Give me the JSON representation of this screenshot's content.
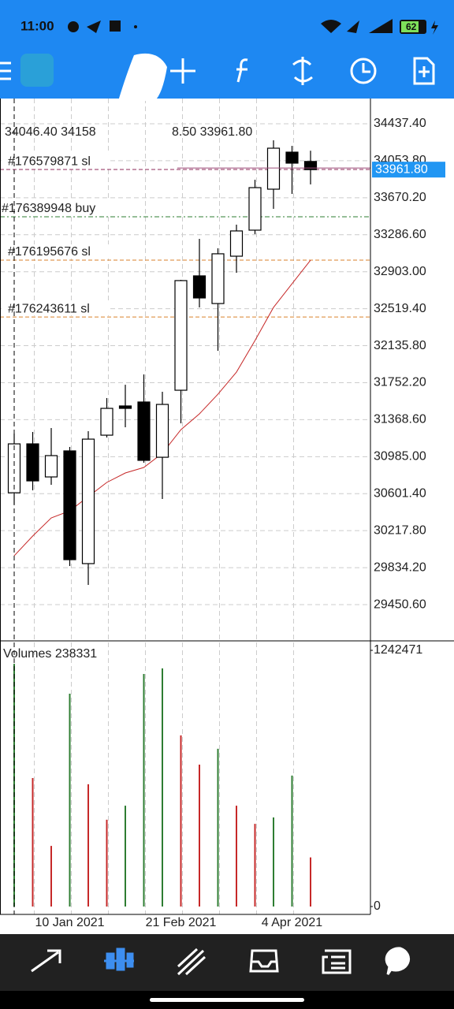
{
  "status_bar": {
    "time": "11:00",
    "battery": "62"
  },
  "chart_data": [
    {
      "type": "candlestick",
      "header": [
        "34046.40 34158",
        "8.50 33961.80"
      ],
      "categories": [
        null,
        null,
        null,
        "10 Jan 2021",
        null,
        null,
        null,
        null,
        null,
        "21 Feb 2021",
        null,
        null,
        null,
        null,
        null,
        "4 Apr 2021",
        null
      ],
      "open": [
        30611,
        31118,
        30775,
        31045,
        29876,
        31208,
        31511,
        31552,
        30979,
        31674,
        32860,
        32573,
        33064,
        33334,
        33759,
        34143,
        34046.4
      ],
      "high": [
        31225,
        31241,
        31282,
        31086,
        31249,
        31593,
        31731,
        31838,
        31658,
        32819,
        33244,
        33146,
        33391,
        33857,
        34266,
        34208,
        34158
      ],
      "low": [
        30489,
        30636,
        30693,
        29851,
        29655,
        31184,
        31290,
        30922,
        30546,
        31331,
        32533,
        32083,
        32892,
        33293,
        33555,
        33710,
        33808.5
      ],
      "close": [
        31118,
        30734,
        30996,
        29917,
        31167,
        31486,
        31486,
        30947,
        31527,
        32811,
        32631,
        33089,
        33326,
        33775,
        34184,
        34029,
        33961.8
      ],
      "up_color": "#ffffff",
      "down_color": "#000000",
      "ma": {
        "color": "#c62828",
        "values": [
          29957,
          30162,
          30350,
          30423,
          30571,
          30718,
          30816,
          30873,
          31020,
          31265,
          31429,
          31633,
          31862,
          32189,
          32533,
          32778,
          33023
        ]
      },
      "current_price": {
        "value": 33961.8,
        "label": "33961.80",
        "color": "#2196f3"
      },
      "orders": [
        {
          "label": "#176579871 sl",
          "value": 33963,
          "color": "#8e2a5a"
        },
        {
          "label": "#176389948 buy",
          "value": 33473,
          "color": "#2e7d32"
        },
        {
          "label": "#176195676 sl",
          "value": 33023,
          "color": "#d9822b"
        },
        {
          "label": "#176243611 sl",
          "value": 32434,
          "color": "#d9822b"
        }
      ],
      "ylim": [
        29083,
        34699
      ],
      "yticks": [
        {
          "value": 34437.4,
          "label": "34437.40"
        },
        {
          "value": 34053.8,
          "label": "34053.80"
        },
        {
          "value": 33670.2,
          "label": "33670.20"
        },
        {
          "value": 33286.6,
          "label": "33286.60"
        },
        {
          "value": 32903,
          "label": "32903.00"
        },
        {
          "value": 32519.4,
          "label": "32519.40"
        },
        {
          "value": 32135.8,
          "label": "32135.80"
        },
        {
          "value": 31752.2,
          "label": "31752.20"
        },
        {
          "value": 31368.6,
          "label": "31368.60"
        },
        {
          "value": 30985,
          "label": "30985.00"
        },
        {
          "value": 30601.4,
          "label": "30601.40"
        },
        {
          "value": 30217.8,
          "label": "30217.80"
        },
        {
          "value": 29834.2,
          "label": "29834.20"
        },
        {
          "value": 29450.6,
          "label": "29450.60"
        }
      ],
      "grid": true
    },
    {
      "type": "bar",
      "title": "Volumes 238331",
      "values": [
        1177000,
        623000,
        294000,
        1032000,
        593000,
        421000,
        489000,
        1128000,
        1155000,
        830000,
        688000,
        765000,
        489000,
        401000,
        432000,
        635000,
        238331
      ],
      "colors": [
        "#2e7d32",
        "#c62828",
        "#c62828",
        "#2e7d32",
        "#c62828",
        "#c62828",
        "#2e7d32",
        "#2e7d32",
        "#2e7d32",
        "#c62828",
        "#c62828",
        "#2e7d32",
        "#c62828",
        "#c62828",
        "#2e7d32",
        "#2e7d32",
        "#c62828"
      ],
      "ylim": [
        0,
        1242471
      ],
      "yticks": [
        0,
        1242471
      ]
    }
  ]
}
